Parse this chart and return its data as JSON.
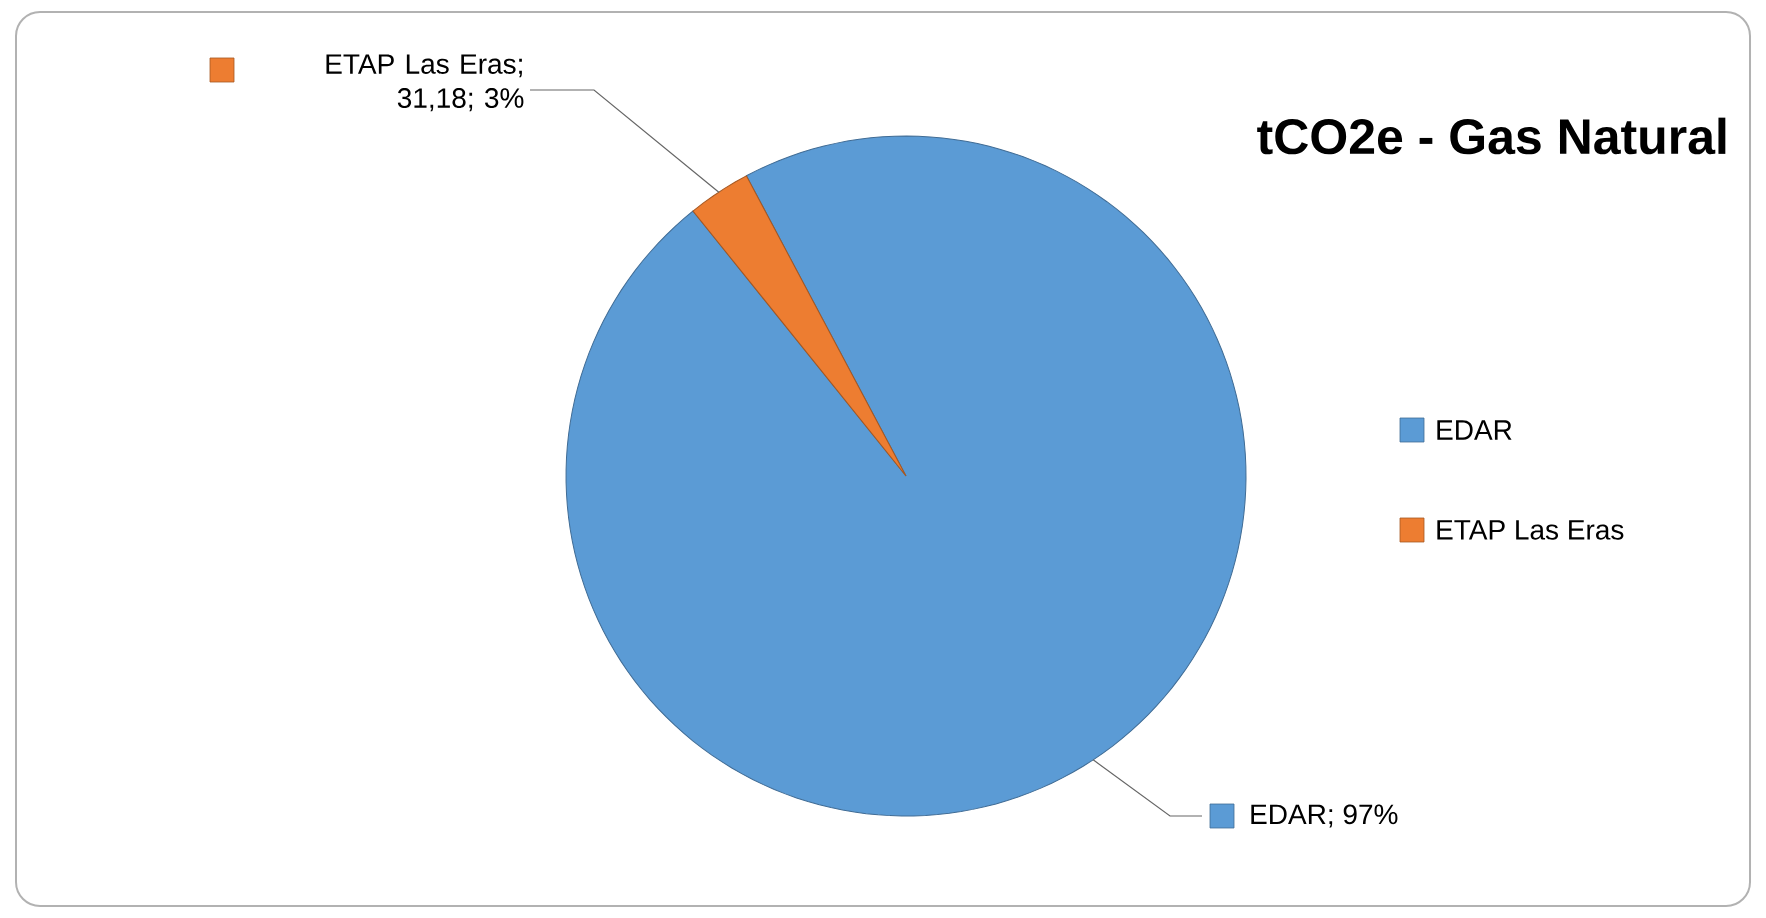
{
  "chart_data": {
    "type": "pie",
    "title": "tCO2e - Gas Natural",
    "categories": [
      "EDAR",
      "ETAP Las Eras"
    ],
    "values": [
      97,
      3
    ],
    "value_labels": [
      "EDAR; 97%",
      "ETAP Las Eras; 31,18; 3%"
    ],
    "colors": [
      "#5b9bd5",
      "#ed7d31"
    ],
    "legend": "right"
  }
}
